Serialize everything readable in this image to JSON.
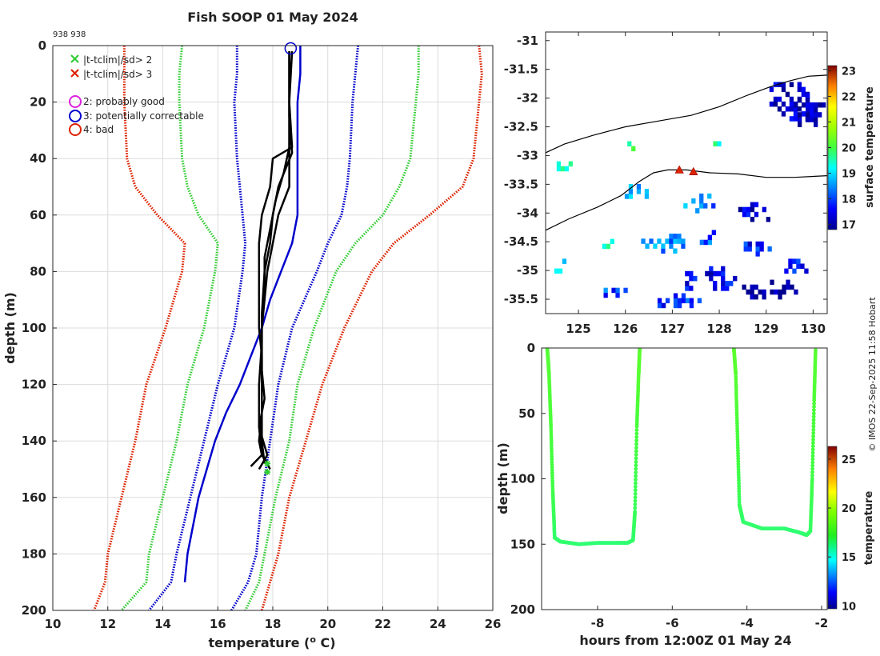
{
  "title": "Fish SOOP 01 May 2024",
  "id_label": "938 938",
  "credit": "© IMOS 22-Sep-2025 11:58 Hobart",
  "legend": {
    "cross_green": "|t-tclim|/sd> 2",
    "cross_red": "|t-tclim|/sd> 3",
    "qc2": "2: probably good",
    "qc3": "3: potentially correctable",
    "qc4": "4: bad"
  },
  "colors": {
    "green": "#33cc33",
    "red": "#dd2200",
    "blue": "#0000cc",
    "black": "#000000",
    "magenta": "#dd22dd",
    "trace": "#33cc22"
  },
  "chart_data": [
    {
      "name": "profile",
      "type": "line",
      "title": "Fish SOOP 01 May 2024",
      "xlabel": "temperature (o C)",
      "ylabel": "depth (m)",
      "xlim": [
        10,
        26
      ],
      "ylim": [
        200,
        0
      ],
      "xticks": [
        10,
        12,
        14,
        16,
        18,
        20,
        22,
        24,
        26
      ],
      "yticks": [
        0,
        20,
        40,
        60,
        80,
        100,
        120,
        140,
        160,
        180,
        200
      ],
      "grid": true,
      "climatology": {
        "depth": [
          0,
          10,
          20,
          40,
          50,
          60,
          70,
          80,
          100,
          120,
          140,
          160,
          180,
          190,
          200
        ],
        "red_left": [
          12.6,
          12.6,
          12.6,
          12.7,
          13.0,
          13.8,
          14.8,
          14.7,
          14.1,
          13.4,
          13.0,
          12.5,
          12.0,
          11.9,
          11.5
        ],
        "green_left": [
          14.7,
          14.6,
          14.6,
          14.7,
          14.9,
          15.3,
          16.0,
          15.9,
          15.5,
          14.9,
          14.5,
          14.0,
          13.5,
          13.4,
          12.5
        ],
        "blue_left": [
          16.7,
          16.7,
          16.6,
          16.7,
          16.8,
          16.9,
          17.0,
          16.9,
          16.6,
          16.0,
          15.5,
          15.0,
          14.5,
          14.3,
          13.5
        ],
        "blue_right": [
          21.1,
          21.0,
          20.9,
          20.8,
          20.7,
          20.5,
          20.0,
          19.6,
          18.7,
          18.2,
          17.9,
          17.6,
          17.4,
          17.1,
          16.5
        ],
        "green_right": [
          23.3,
          23.3,
          23.2,
          23.0,
          22.6,
          22.0,
          21.0,
          20.3,
          19.5,
          18.9,
          18.6,
          18.1,
          17.7,
          17.5,
          17.0
        ],
        "red_right": [
          25.5,
          25.6,
          25.5,
          25.3,
          24.9,
          23.7,
          22.4,
          21.6,
          20.6,
          19.8,
          19.2,
          18.6,
          18.2,
          17.9,
          17.6
        ]
      },
      "blue_profile": {
        "depth": [
          0,
          10,
          20,
          40,
          60,
          70,
          80,
          90,
          100,
          110,
          120,
          130,
          140,
          150,
          160,
          170,
          180,
          190
        ],
        "temperature": [
          19.0,
          19.0,
          18.9,
          18.9,
          18.9,
          18.7,
          18.3,
          17.9,
          17.6,
          17.2,
          16.8,
          16.3,
          15.9,
          15.6,
          15.3,
          15.1,
          14.9,
          14.8
        ]
      },
      "black_profiles": [
        {
          "depth": [
            2,
            20,
            36,
            40,
            50,
            60,
            70,
            80,
            90,
            100,
            110,
            120,
            130,
            140,
            145,
            148,
            150
          ],
          "temperature": [
            18.6,
            18.6,
            18.7,
            18.0,
            17.9,
            17.6,
            17.5,
            17.5,
            17.5,
            17.5,
            17.6,
            17.6,
            17.6,
            17.5,
            17.6,
            17.8,
            17.9
          ]
        },
        {
          "depth": [
            2,
            20,
            36,
            45,
            55,
            65,
            75,
            85,
            100,
            115,
            125,
            135,
            145,
            149
          ],
          "temperature": [
            18.6,
            18.6,
            18.6,
            18.4,
            18.1,
            17.9,
            17.7,
            17.7,
            17.6,
            17.6,
            17.7,
            17.5,
            17.6,
            17.2
          ]
        },
        {
          "depth": [
            2,
            20,
            36,
            50,
            60,
            70,
            80,
            90,
            100,
            110,
            120,
            130,
            140,
            148
          ],
          "temperature": [
            18.7,
            18.6,
            18.6,
            18.6,
            18.2,
            18.0,
            17.8,
            17.7,
            17.6,
            17.6,
            17.6,
            17.6,
            17.6,
            17.7
          ]
        },
        {
          "depth": [
            2,
            25,
            38,
            50,
            60,
            70,
            80,
            95,
            105,
            120,
            135,
            145,
            150
          ],
          "temperature": [
            18.6,
            18.6,
            18.7,
            18.2,
            18.0,
            17.9,
            17.7,
            17.6,
            17.6,
            17.5,
            17.5,
            17.8,
            17.5
          ]
        }
      ],
      "qc_circle": {
        "temperature": 18.65,
        "depth": 1
      },
      "flag_markers": [
        {
          "temperature": 17.8,
          "depth": 148,
          "color": "green"
        },
        {
          "temperature": 17.8,
          "depth": 151,
          "color": "green"
        }
      ]
    },
    {
      "name": "map",
      "type": "heatmap",
      "xlim": [
        124.3,
        130.3
      ],
      "ylim": [
        -35.75,
        -30.85
      ],
      "xticks": [
        125,
        126,
        127,
        128,
        129,
        130
      ],
      "xticklabels": [
        "125",
        "126",
        "127",
        "128",
        "129",
        "130"
      ],
      "yticks": [
        -31,
        -31.5,
        -32,
        -32.5,
        -33,
        -33.5,
        -34,
        -34.5,
        -35,
        -35.5
      ],
      "yticklabels": [
        "-31",
        "-31.5",
        "-32",
        "-32.5",
        "-33",
        "-33.5",
        "-34",
        "-34.5",
        "-35",
        "-35.5"
      ],
      "colorbar": {
        "label": "surface temperature",
        "range": [
          16.8,
          23.2
        ],
        "ticks": [
          17,
          18,
          19,
          20,
          21,
          22,
          23
        ],
        "ticklabels": [
          "17",
          "18",
          "19",
          "20",
          "21",
          "22",
          "23"
        ]
      },
      "coastline": {
        "lon": [
          124.3,
          124.7,
          125.3,
          126.0,
          126.7,
          127.4,
          128.0,
          128.6,
          129.1,
          129.5,
          129.9,
          130.3
        ],
        "lat": [
          -32.95,
          -32.8,
          -32.65,
          -32.5,
          -32.4,
          -32.3,
          -32.15,
          -31.95,
          -31.8,
          -31.7,
          -31.62,
          -31.6
        ]
      },
      "track": {
        "lon": [
          124.3,
          124.8,
          125.4,
          125.9,
          126.3,
          126.6,
          126.9,
          127.3,
          127.8,
          128.4,
          129.0,
          129.6,
          130.3
        ],
        "lat": [
          -34.3,
          -34.1,
          -33.9,
          -33.7,
          -33.45,
          -33.3,
          -33.25,
          -33.25,
          -33.3,
          -33.32,
          -33.38,
          -33.38,
          -33.35
        ]
      },
      "stations": [
        {
          "lon": 127.15,
          "lat": -33.25
        },
        {
          "lon": 127.45,
          "lat": -33.28
        }
      ],
      "sst_patches": [
        {
          "lon": 129.5,
          "lat": -32.0,
          "rlon": 0.6,
          "rlat": 0.4,
          "t": 17.2
        },
        {
          "lon": 129.9,
          "lat": -32.2,
          "rlon": 0.4,
          "rlat": 0.3,
          "t": 17.0
        },
        {
          "lon": 124.7,
          "lat": -33.15,
          "rlon": 0.25,
          "rlat": 0.12,
          "t": 19.6
        },
        {
          "lon": 126.0,
          "lat": -32.8,
          "rlon": 0.3,
          "rlat": 0.12,
          "t": 19.6
        },
        {
          "lon": 127.9,
          "lat": -32.8,
          "rlon": 0.2,
          "rlat": 0.12,
          "t": 19.4
        },
        {
          "lon": 126.2,
          "lat": -33.6,
          "rlon": 0.3,
          "rlat": 0.15,
          "t": 18.6
        },
        {
          "lon": 127.6,
          "lat": -33.8,
          "rlon": 0.45,
          "rlat": 0.2,
          "t": 18.4
        },
        {
          "lon": 128.7,
          "lat": -33.95,
          "rlon": 0.55,
          "rlat": 0.2,
          "t": 17.3
        },
        {
          "lon": 126.8,
          "lat": -34.5,
          "rlon": 0.55,
          "rlat": 0.2,
          "t": 18.5
        },
        {
          "lon": 125.5,
          "lat": -34.5,
          "rlon": 0.25,
          "rlat": 0.12,
          "t": 19.6
        },
        {
          "lon": 127.8,
          "lat": -34.4,
          "rlon": 0.3,
          "rlat": 0.15,
          "t": 18.2
        },
        {
          "lon": 128.7,
          "lat": -34.6,
          "rlon": 0.35,
          "rlat": 0.15,
          "t": 17.7
        },
        {
          "lon": 127.7,
          "lat": -35.1,
          "rlon": 0.6,
          "rlat": 0.25,
          "t": 17.4
        },
        {
          "lon": 129.0,
          "lat": -35.3,
          "rlon": 0.6,
          "rlat": 0.2,
          "t": 16.9
        },
        {
          "lon": 127.1,
          "lat": -35.5,
          "rlon": 0.5,
          "rlat": 0.15,
          "t": 17.9
        },
        {
          "lon": 125.8,
          "lat": -35.35,
          "rlon": 0.35,
          "rlat": 0.12,
          "t": 18.0
        },
        {
          "lon": 124.6,
          "lat": -34.9,
          "rlon": 0.2,
          "rlat": 0.15,
          "t": 19.2
        },
        {
          "lon": 129.6,
          "lat": -34.9,
          "rlon": 0.3,
          "rlat": 0.15,
          "t": 17.6
        }
      ]
    },
    {
      "name": "trace",
      "type": "scatter",
      "xlabel": "hours from 12:00Z 01 May 24",
      "ylabel": "depth (m)",
      "xlim": [
        -9.5,
        -1.85
      ],
      "ylim": [
        200,
        0
      ],
      "xticks": [
        -8,
        -6,
        -4,
        -2
      ],
      "xticklabels": [
        "-8",
        "-6",
        "-4",
        "-2"
      ],
      "yticks": [
        0,
        50,
        100,
        150,
        200
      ],
      "yticklabels": [
        "0",
        "50",
        "100",
        "150",
        "200"
      ],
      "colorbar": {
        "label": "temperature",
        "range": [
          9.7,
          26.3
        ],
        "ticks": [
          10,
          15,
          20,
          25
        ],
        "ticklabels": [
          "10",
          "15",
          "20",
          "25"
        ]
      },
      "casts": [
        {
          "hours": [
            -9.35,
            -9.3,
            -9.25,
            -9.2,
            -9.15,
            -9.0,
            -8.5,
            -8.0,
            -7.5,
            -7.2,
            -7.05,
            -7.0,
            -6.95,
            -6.9,
            -6.87
          ],
          "depth": [
            0,
            20,
            60,
            110,
            145,
            148,
            150,
            149,
            149,
            149,
            147,
            125,
            60,
            20,
            0
          ],
          "temperature": [
            18.5,
            18.5,
            18.3,
            18.0,
            17.6,
            17.6,
            17.5,
            17.5,
            17.5,
            17.5,
            17.6,
            17.8,
            18.2,
            18.6,
            18.7
          ]
        },
        {
          "hours": [
            -4.35,
            -4.3,
            -4.25,
            -4.2,
            -4.1,
            -3.6,
            -3.0,
            -2.6,
            -2.4,
            -2.3,
            -2.25,
            -2.2,
            -2.16
          ],
          "depth": [
            0,
            20,
            70,
            120,
            133,
            138,
            138,
            141,
            143,
            140,
            100,
            40,
            0
          ],
          "temperature": [
            18.7,
            18.6,
            18.2,
            17.8,
            17.6,
            17.6,
            17.5,
            17.5,
            17.6,
            17.7,
            18.0,
            18.4,
            18.6
          ]
        }
      ]
    }
  ]
}
